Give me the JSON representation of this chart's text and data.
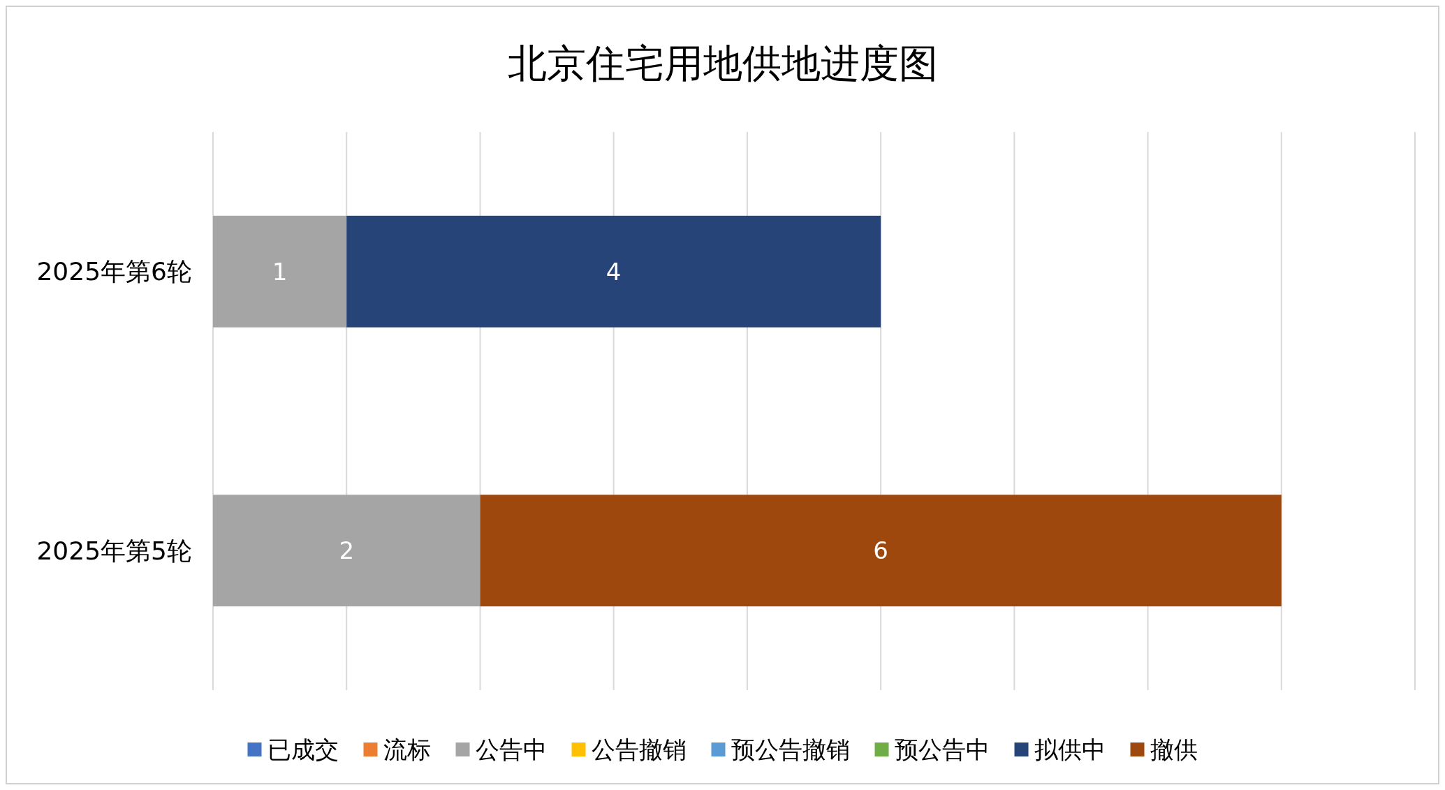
{
  "chart_data": {
    "type": "bar",
    "orientation": "horizontal",
    "stacked": true,
    "title": "北京住宅用地供地进度图",
    "categories": [
      "2025年第6轮",
      "2025年第5轮"
    ],
    "series": [
      {
        "name": "已成交",
        "color": "#4472c4",
        "values": [
          null,
          null
        ]
      },
      {
        "name": "流标",
        "color": "#ed7d31",
        "values": [
          null,
          null
        ]
      },
      {
        "name": "公告中",
        "color": "#a5a5a5",
        "values": [
          1,
          2
        ]
      },
      {
        "name": "公告撤销",
        "color": "#ffc000",
        "values": [
          null,
          null
        ]
      },
      {
        "name": "预公告撤销",
        "color": "#5b9bd5",
        "values": [
          null,
          null
        ]
      },
      {
        "name": "预公告中",
        "color": "#70ad47",
        "values": [
          null,
          null
        ]
      },
      {
        "name": "拟供中",
        "color": "#264478",
        "values": [
          4,
          null
        ]
      },
      {
        "name": "撤供",
        "color": "#9e480e",
        "values": [
          null,
          6
        ]
      }
    ],
    "xlim": [
      0,
      9
    ],
    "xticks": [
      {
        "value": 0,
        "label": null
      },
      {
        "value": 1,
        "label": null
      },
      {
        "value": 2,
        "label": null
      },
      {
        "value": 3,
        "label": null
      },
      {
        "value": 4,
        "label": null
      },
      {
        "value": 5,
        "label": null
      },
      {
        "value": 6,
        "label": null
      },
      {
        "value": 7,
        "label": null
      },
      {
        "value": 8,
        "label": null
      },
      {
        "value": 9,
        "label": null
      }
    ],
    "tick_labels": "y",
    "grid": "x",
    "legend": "bottom",
    "data_labels": true
  }
}
